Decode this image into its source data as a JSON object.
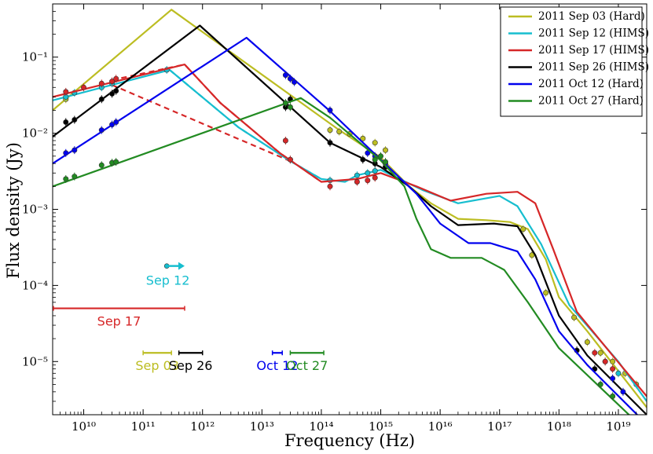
{
  "chart_data": {
    "type": "line",
    "x_scale": "log",
    "y_scale": "log",
    "xlabel": "Frequency (Hz)",
    "ylabel": "Flux density (Jy)",
    "xlim": [
      3000000000.0,
      3e+19
    ],
    "ylim": [
      2e-06,
      0.5
    ],
    "x_tick_labels": [
      "10^10",
      "10^11",
      "10^12",
      "10^13",
      "10^14",
      "10^15",
      "10^16",
      "10^17",
      "10^18",
      "10^19"
    ],
    "y_tick_labels": [
      "10^-5",
      "10^-4",
      "10^-3",
      "10^-2",
      "10^-1"
    ],
    "legend_position": "top-right",
    "series": [
      {
        "name": "2011 Sep 03 (Hard)",
        "color": "#bcbd22",
        "model": [
          [
            3000000000.0,
            0.02
          ],
          [
            300000000000.0,
            0.42
          ],
          [
            200000000000000.0,
            0.011
          ],
          [
            1000000000000000.0,
            0.0048
          ],
          [
            3000000000000000.0,
            0.002
          ],
          [
            7000000000000000.0,
            0.0012
          ],
          [
            2e+16,
            0.00075
          ],
          [
            6e+16,
            0.00072
          ],
          [
            1.5e+17,
            0.00068
          ],
          [
            3e+17,
            0.00055
          ],
          [
            6e+17,
            0.00022
          ],
          [
            1e+18,
            7e-05
          ],
          [
            3e+18,
            2.5e-05
          ],
          [
            3e+19,
            2.5e-06
          ]
        ],
        "data": [
          [
            5000000000.0,
            0.028
          ],
          [
            140000000000000.0,
            0.011
          ],
          [
            200000000000000.0,
            0.0105
          ],
          [
            300000000000000.0,
            0.0098
          ],
          [
            500000000000000.0,
            0.0085
          ],
          [
            800000000000000.0,
            0.0075
          ],
          [
            1200000000000000.0,
            0.006
          ],
          [
            2.5e+17,
            0.00055
          ],
          [
            3.5e+17,
            0.00025
          ],
          [
            6e+17,
            8e-05
          ],
          [
            1.8e+18,
            3.8e-05
          ],
          [
            3e+18,
            1.8e-05
          ],
          [
            5e+18,
            1.3e-05
          ],
          [
            8e+18,
            1e-05
          ],
          [
            1.3e+19,
            7e-06
          ],
          [
            2e+19,
            5e-06
          ]
        ]
      },
      {
        "name": "2011 Sep 12 (HIMS)",
        "color": "#17becf",
        "model": [
          [
            3000000000.0,
            0.027
          ],
          [
            280000000000.0,
            0.068
          ],
          [
            4000000000000.0,
            0.012
          ],
          [
            30000000000000.0,
            0.0043
          ],
          [
            100000000000000.0,
            0.0025
          ],
          [
            250000000000000.0,
            0.0023
          ],
          [
            400000000000000.0,
            0.0028
          ],
          [
            1000000000000000.0,
            0.0033
          ],
          [
            5000000000000000.0,
            0.0018
          ],
          [
            2e+16,
            0.0012
          ],
          [
            1e+17,
            0.0015
          ],
          [
            2e+17,
            0.0011
          ],
          [
            5e+17,
            0.00035
          ],
          [
            1.5e+18,
            5.5e-05
          ],
          [
            1e+19,
            1e-05
          ],
          [
            3e+19,
            3e-06
          ]
        ],
        "data": [
          [
            5000000000.0,
            0.03
          ],
          [
            7000000000.0,
            0.034
          ],
          [
            20000000000.0,
            0.04
          ],
          [
            30000000000.0,
            0.045
          ],
          [
            250000000000.0,
            0.068
          ],
          [
            30000000000000.0,
            0.0045
          ],
          [
            140000000000000.0,
            0.0024
          ],
          [
            400000000000000.0,
            0.0028
          ],
          [
            600000000000000.0,
            0.003
          ],
          [
            800000000000000.0,
            0.0032
          ],
          [
            6e+18,
            1e-05
          ],
          [
            1e+19,
            7e-06
          ]
        ]
      },
      {
        "name": "2011 Sep 17 (HIMS)",
        "color": "#d62728",
        "model": [
          [
            3000000000.0,
            0.03
          ],
          [
            500000000000.0,
            0.08
          ],
          [
            2000000000000.0,
            0.025
          ],
          [
            20000000000000.0,
            0.0055
          ],
          [
            100000000000000.0,
            0.0023
          ],
          [
            400000000000000.0,
            0.0025
          ],
          [
            1000000000000000.0,
            0.003
          ],
          [
            4000000000000000.0,
            0.002
          ],
          [
            1.5e+16,
            0.0013
          ],
          [
            6e+16,
            0.0016
          ],
          [
            2e+17,
            0.0017
          ],
          [
            4e+17,
            0.0012
          ],
          [
            8e+17,
            0.0003
          ],
          [
            2e+18,
            4.5e-05
          ],
          [
            8e+18,
            1.2e-05
          ],
          [
            3e+19,
            3.5e-06
          ]
        ],
        "data": [
          [
            5000000000.0,
            0.035
          ],
          [
            10000000000.0,
            0.04
          ],
          [
            20000000000.0,
            0.045
          ],
          [
            30000000000.0,
            0.048
          ],
          [
            35000000000.0,
            0.052
          ],
          [
            25000000000000.0,
            0.008
          ],
          [
            30000000000000.0,
            0.0045
          ],
          [
            140000000000000.0,
            0.002
          ],
          [
            400000000000000.0,
            0.0023
          ],
          [
            600000000000000.0,
            0.0024
          ],
          [
            800000000000000.0,
            0.0026
          ],
          [
            4e+18,
            1.3e-05
          ],
          [
            6e+18,
            1e-05
          ],
          [
            8e+18,
            8e-06
          ]
        ]
      },
      {
        "name": "2011 Sep 26 (HIMS)",
        "color": "#000000",
        "model": [
          [
            3000000000.0,
            0.009
          ],
          [
            900000000000.0,
            0.26
          ],
          [
            140000000000000.0,
            0.0075
          ],
          [
            1000000000000000.0,
            0.0036
          ],
          [
            3000000000000000.0,
            0.002
          ],
          [
            7000000000000000.0,
            0.0011
          ],
          [
            2e+16,
            0.00062
          ],
          [
            8e+16,
            0.00065
          ],
          [
            2e+17,
            0.0006
          ],
          [
            4e+17,
            0.00025
          ],
          [
            1e+18,
            4e-05
          ],
          [
            3e+18,
            1.2e-05
          ],
          [
            3e+19,
            2e-06
          ]
        ],
        "data": [
          [
            5000000000.0,
            0.014
          ],
          [
            7000000000.0,
            0.015
          ],
          [
            20000000000.0,
            0.028
          ],
          [
            30000000000.0,
            0.033
          ],
          [
            35000000000.0,
            0.036
          ],
          [
            25000000000000.0,
            0.022
          ],
          [
            30000000000000.0,
            0.028
          ],
          [
            140000000000000.0,
            0.0075
          ],
          [
            500000000000000.0,
            0.0045
          ],
          [
            800000000000000.0,
            0.004
          ],
          [
            1200000000000000.0,
            0.0036
          ],
          [
            2e+18,
            1.4e-05
          ],
          [
            4e+18,
            8e-06
          ]
        ]
      },
      {
        "name": "2011 Oct 12 (Hard)",
        "color": "#0000ee",
        "model": [
          [
            3000000000.0,
            0.004
          ],
          [
            5500000000000.0,
            0.18
          ],
          [
            140000000000000.0,
            0.0195
          ],
          [
            1000000000000000.0,
            0.0045
          ],
          [
            4000000000000000.0,
            0.0016
          ],
          [
            1e+16,
            0.00065
          ],
          [
            3e+16,
            0.00036
          ],
          [
            7e+16,
            0.00036
          ],
          [
            2e+17,
            0.00028
          ],
          [
            4e+17,
            0.00012
          ],
          [
            1e+18,
            2.5e-05
          ],
          [
            3e+18,
            9e-06
          ],
          [
            3e+19,
            1.5e-06
          ]
        ],
        "data": [
          [
            5000000000.0,
            0.0055
          ],
          [
            7000000000.0,
            0.006
          ],
          [
            20000000000.0,
            0.011
          ],
          [
            30000000000.0,
            0.013
          ],
          [
            35000000000.0,
            0.014
          ],
          [
            25000000000000.0,
            0.058
          ],
          [
            30000000000000.0,
            0.052
          ],
          [
            35000000000000.0,
            0.047
          ],
          [
            140000000000000.0,
            0.02
          ],
          [
            600000000000000.0,
            0.0055
          ],
          [
            800000000000000.0,
            0.005
          ],
          [
            1200000000000000.0,
            0.004
          ],
          [
            8e+18,
            6e-06
          ],
          [
            1.2e+19,
            4e-06
          ]
        ]
      },
      {
        "name": "2011 Oct 27 (Hard)",
        "color": "#228b22",
        "model": [
          [
            3000000000.0,
            0.002
          ],
          [
            45000000000000.0,
            0.029
          ],
          [
            140000000000000.0,
            0.016
          ],
          [
            1000000000000000.0,
            0.0044
          ],
          [
            2500000000000000.0,
            0.002
          ],
          [
            4000000000000000.0,
            0.00075
          ],
          [
            7000000000000000.0,
            0.0003
          ],
          [
            1.5e+16,
            0.00023
          ],
          [
            5e+16,
            0.00023
          ],
          [
            1.2e+17,
            0.00016
          ],
          [
            3e+17,
            6e-05
          ],
          [
            1e+18,
            1.5e-05
          ],
          [
            3e+19,
            1.2e-06
          ]
        ],
        "data": [
          [
            5000000000.0,
            0.0025
          ],
          [
            7000000000.0,
            0.0027
          ],
          [
            20000000000.0,
            0.0038
          ],
          [
            30000000000.0,
            0.0041
          ],
          [
            35000000000.0,
            0.0042
          ],
          [
            25000000000000.0,
            0.025
          ],
          [
            30000000000000.0,
            0.022
          ],
          [
            800000000000000.0,
            0.0045
          ],
          [
            1000000000000000.0,
            0.005
          ],
          [
            1200000000000000.0,
            0.0042
          ],
          [
            5e+18,
            5e-06
          ],
          [
            8e+18,
            3.5e-06
          ]
        ]
      }
    ],
    "dashed_extrapolations": [
      {
        "series": "2011 Sep 12 (HIMS)",
        "color": "#17becf",
        "points": [
          [
            280000000000.0,
            0.068
          ],
          [
            4000000000000.0,
            0.012
          ],
          [
            30000000000000.0,
            0.0043
          ],
          [
            100000000000000.0,
            0.0025
          ]
        ]
      },
      {
        "series": "2011 Sep 17 (HIMS)",
        "color": "#d62728",
        "points": [
          [
            30000000000.0,
            0.05
          ],
          [
            500000000000.0,
            0.08
          ],
          [
            2000000000000.0,
            0.025
          ],
          [
            20000000000000.0,
            0.0055
          ],
          [
            100000000000000.0,
            0.0023
          ]
        ]
      },
      {
        "series": "2011 Sep 17 (HIMS)",
        "color": "#d62728",
        "points": [
          [
            30000000000.0,
            0.043
          ],
          [
            30000000000000.0,
            0.0043
          ]
        ]
      }
    ],
    "annotations": [
      {
        "text": "Sep 12",
        "color": "#17becf",
        "x_range": [
          250000000000.0,
          500000000000.0
        ],
        "y": 0.00018,
        "kind": "arrow-right"
      },
      {
        "text": "Sep 17",
        "color": "#d62728",
        "x_range": [
          2000000000.0,
          500000000000.0
        ],
        "y": 5e-05,
        "kind": "range"
      },
      {
        "text": "Sep 03",
        "color": "#bcbd22",
        "x_range": [
          100000000000.0,
          300000000000.0
        ],
        "y": 1.3e-05,
        "kind": "range"
      },
      {
        "text": "Sep 26",
        "color": "#000000",
        "x_range": [
          400000000000.0,
          1000000000000.0
        ],
        "y": 1.3e-05,
        "kind": "range"
      },
      {
        "text": "Oct 12",
        "color": "#0000ee",
        "x_range": [
          15000000000000.0,
          22000000000000.0
        ],
        "y": 1.3e-05,
        "kind": "range"
      },
      {
        "text": "Oct 27",
        "color": "#228b22",
        "x_range": [
          30000000000000.0,
          110000000000000.0
        ],
        "y": 1.3e-05,
        "kind": "range"
      }
    ]
  }
}
